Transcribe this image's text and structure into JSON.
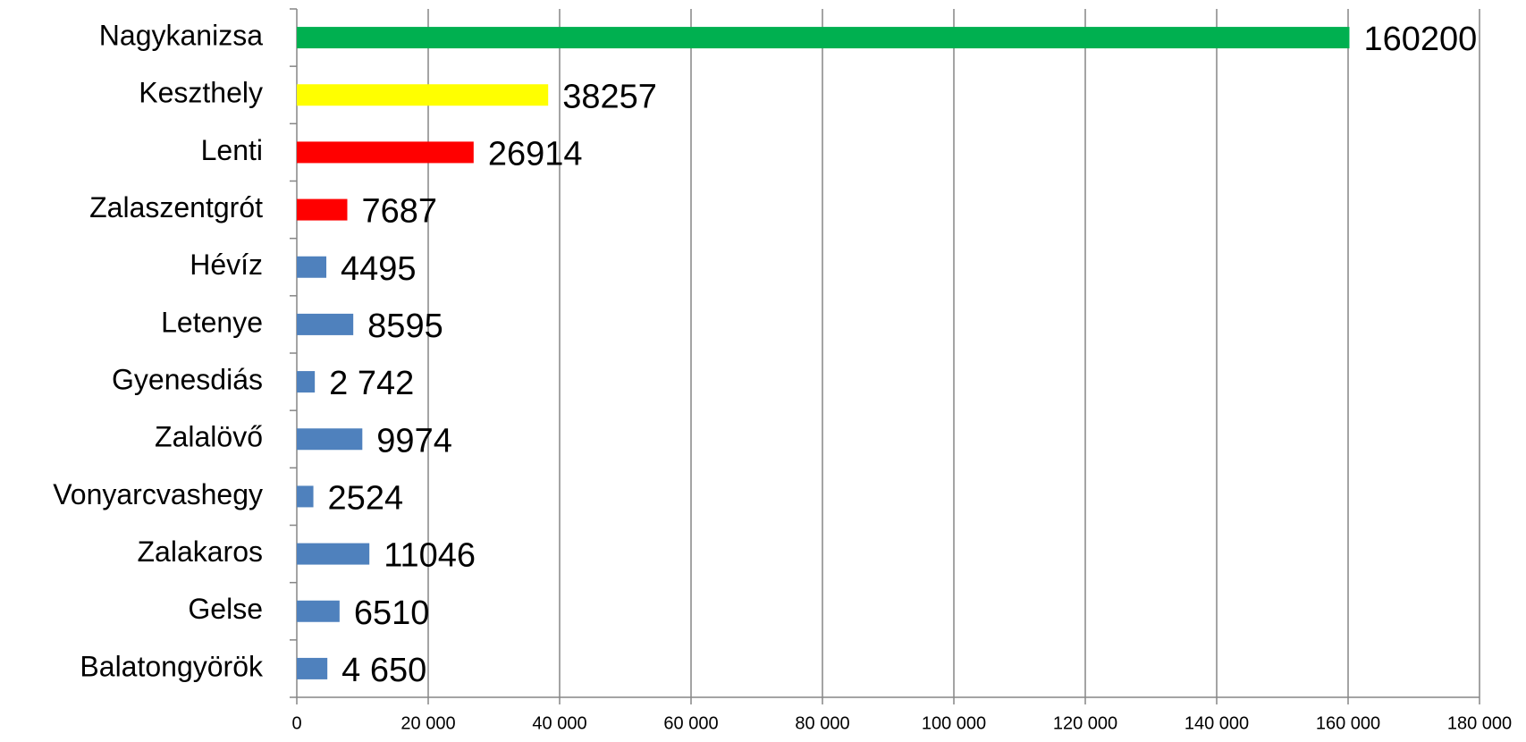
{
  "chart_data": {
    "type": "bar",
    "orientation": "horizontal",
    "categories": [
      "Nagykanizsa",
      "Keszthely",
      "Lenti",
      "Zalaszentgrót",
      "Hévíz",
      "Letenye",
      "Gyenesdiás",
      "Zalalövő",
      "Vonyarcvashegy",
      "Zalakaros",
      "Gelse",
      "Balatongyörök"
    ],
    "values": [
      160200,
      38257,
      26914,
      7687,
      4495,
      8595,
      2742,
      9974,
      2524,
      11046,
      6510,
      4650
    ],
    "value_labels": [
      "160200",
      "38257",
      "26914",
      "7687",
      "4495",
      "8595",
      "2 742",
      "9974",
      "2524",
      "11046",
      "6510",
      "4 650"
    ],
    "colors": [
      "#00b050",
      "#ffff00",
      "#ff0000",
      "#ff0000",
      "#4f81bd",
      "#4f81bd",
      "#4f81bd",
      "#4f81bd",
      "#4f81bd",
      "#4f81bd",
      "#4f81bd",
      "#4f81bd"
    ],
    "xlim": [
      0,
      180000
    ],
    "xticks": [
      0,
      {
        "value": 20000,
        "label": "20 000"
      },
      {
        "value": 40000,
        "label": "40 000"
      },
      {
        "value": 60000,
        "label": "60 000"
      },
      {
        "value": 80000,
        "label": "80 000"
      },
      {
        "value": 100000,
        "label": "100 000"
      },
      {
        "value": 120000,
        "label": "120 000"
      },
      {
        "value": 140000,
        "label": "140 000"
      },
      {
        "value": 160000,
        "label": "160 000"
      },
      {
        "value": 180000,
        "label": "180 000"
      }
    ],
    "grid": true
  }
}
